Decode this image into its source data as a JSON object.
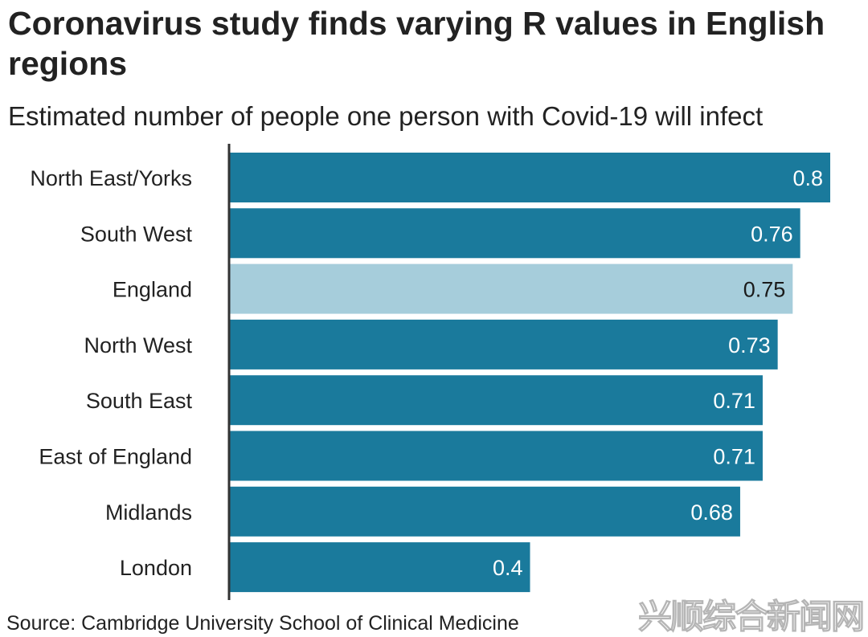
{
  "title": "Coronavirus study finds varying R values in English regions",
  "subtitle": "Estimated number of people one person with Covid-19 will infect",
  "source": "Source: Cambridge University School of Clinical Medicine",
  "watermark": "兴顺综合新闻网",
  "colors": {
    "bar": "#1a7a9c",
    "highlight": "#a6cddb",
    "axis": "#333333",
    "label_on_dark": "#ffffff",
    "label_on_light": "#1a1a1a"
  },
  "chart_data": {
    "type": "bar",
    "orientation": "horizontal",
    "title": "Coronavirus study finds varying R values in English regions",
    "subtitle": "Estimated number of people one person with Covid-19 will infect",
    "categories": [
      "North East/Yorks",
      "South West",
      "England",
      "North West",
      "South East",
      "East of England",
      "Midlands",
      "London"
    ],
    "values": [
      0.8,
      0.76,
      0.75,
      0.73,
      0.71,
      0.71,
      0.68,
      0.4
    ],
    "value_labels": [
      "0.8",
      "0.76",
      "0.75",
      "0.73",
      "0.71",
      "0.71",
      "0.68",
      "0.4"
    ],
    "highlight": [
      "England"
    ],
    "xlim": [
      0,
      0.8
    ],
    "xlabel": "",
    "ylabel": "",
    "grid": false,
    "legend": "none"
  }
}
